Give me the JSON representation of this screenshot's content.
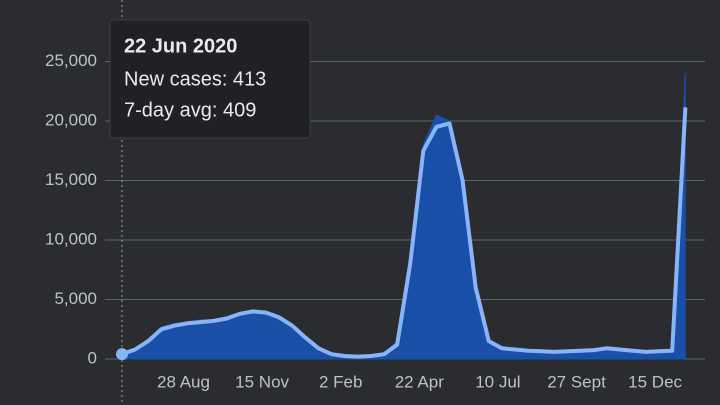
{
  "chart_data": {
    "type": "area",
    "categories": [
      null,
      null,
      null,
      null,
      null,
      "28 Aug",
      null,
      null,
      null,
      null,
      null,
      "15 Nov",
      null,
      null,
      null,
      null,
      null,
      "2 Feb",
      null,
      null,
      null,
      null,
      null,
      "22 Apr",
      null,
      null,
      null,
      null,
      null,
      "10 Jul",
      null,
      null,
      null,
      null,
      null,
      "27 Sept",
      null,
      null,
      null,
      null,
      null,
      "15 Dec",
      null,
      null
    ],
    "series": [
      {
        "color": "#1a4fa8",
        "values": [
          413,
          900,
          1700,
          2700,
          3000,
          3100,
          3300,
          3300,
          3600,
          3900,
          4100,
          3900,
          3500,
          2900,
          1900,
          1000,
          400,
          250,
          200,
          260,
          450,
          1500,
          9000,
          18000,
          20500,
          20000,
          14500,
          5500,
          1400,
          900,
          800,
          700,
          650,
          600,
          650,
          700,
          750,
          950,
          800,
          700,
          600,
          650,
          700,
          24000
        ]
      },
      {
        "color": "#8ab4f8",
        "values": [
          409,
          800,
          1500,
          2500,
          2800,
          3000,
          3100,
          3200,
          3400,
          3800,
          4000,
          3900,
          3500,
          2800,
          1800,
          900,
          400,
          250,
          200,
          250,
          400,
          1200,
          8000,
          17500,
          19500,
          19800,
          15000,
          6000,
          1500,
          900,
          800,
          700,
          650,
          600,
          650,
          700,
          750,
          900,
          800,
          700,
          600,
          650,
          700,
          21000
        ]
      }
    ],
    "ylim": [
      0,
      30000
    ],
    "yticks": [
      0,
      {
        "value": 5000,
        "label": "5,000"
      },
      {
        "value": 10000,
        "label": "10,000"
      },
      {
        "value": 15000,
        "label": "15,000"
      },
      {
        "value": 20000,
        "label": "20,000"
      },
      {
        "value": 25000,
        "label": "25,000"
      }
    ],
    "grid": true,
    "tooltip": {
      "date": "22 Jun 2020",
      "lines": [
        "New cases: 413",
        "7-day avg: 409"
      ]
    }
  }
}
